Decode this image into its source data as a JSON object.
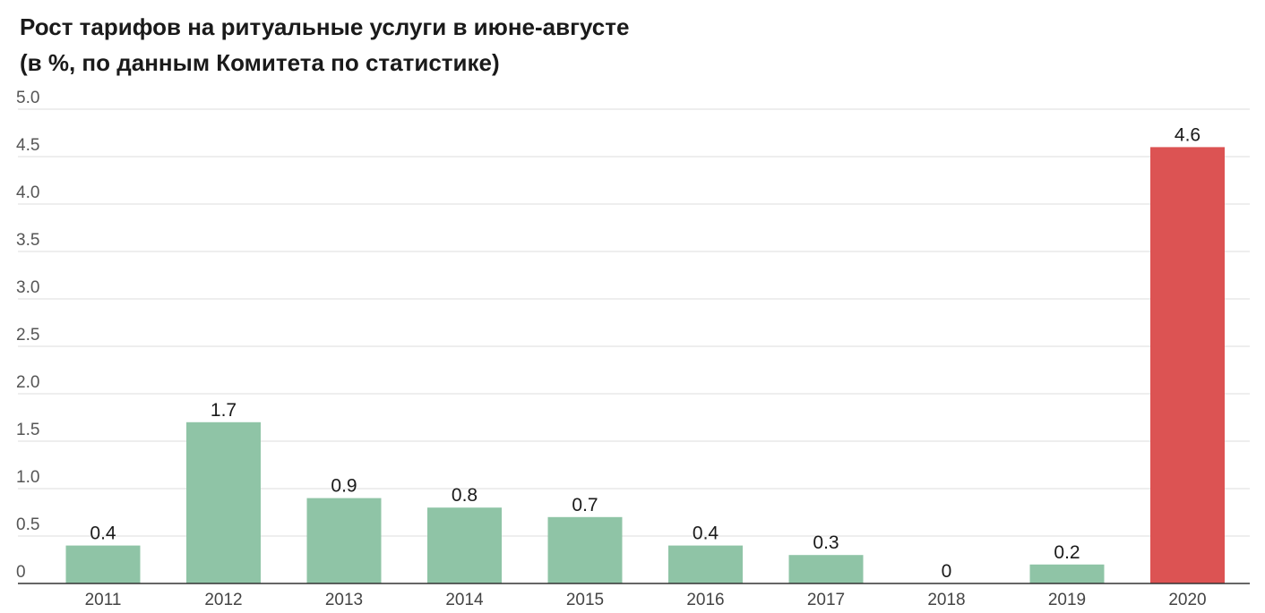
{
  "chart_data": {
    "type": "bar",
    "title": "Рост тарифов на ритуальные услуги в июне-августе",
    "subtitle": "(в %, по данным Комитета по статистике)",
    "xlabel": "",
    "ylabel": "",
    "categories": [
      "2011",
      "2012",
      "2013",
      "2014",
      "2015",
      "2016",
      "2017",
      "2018",
      "2019",
      "2020"
    ],
    "values": [
      0.4,
      1.7,
      0.9,
      0.8,
      0.7,
      0.4,
      0.3,
      0,
      0.2,
      4.6
    ],
    "value_labels": [
      "0.4",
      "1.7",
      "0.9",
      "0.8",
      "0.7",
      "0.4",
      "0.3",
      "0",
      "0.2",
      "4.6"
    ],
    "ylim": [
      0,
      5
    ],
    "yticks": [
      0,
      0.5,
      1.0,
      1.5,
      2.0,
      2.5,
      3.0,
      3.5,
      4.0,
      4.5,
      5.0
    ],
    "ytick_labels": [
      "0",
      "0.5",
      "1.0",
      "1.5",
      "2.0",
      "2.5",
      "3.0",
      "3.5",
      "4.0",
      "4.5",
      "5.0"
    ],
    "grid": true,
    "legend": "none",
    "colors": {
      "default_bar": "#8fc4a6",
      "highlight_bar": "#dc5353",
      "gridline": "#dddddd",
      "axis": "#333333"
    },
    "highlight_index": 9
  }
}
